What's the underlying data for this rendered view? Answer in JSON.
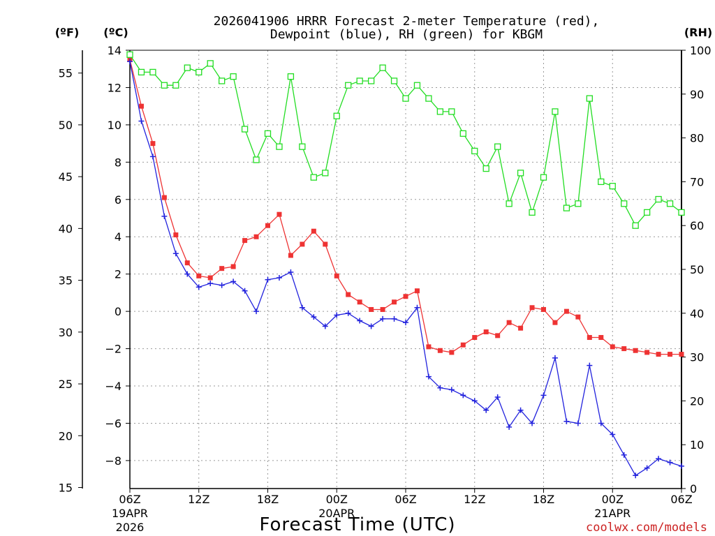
{
  "chart_data": {
    "type": "line",
    "title_line1": "2026041906 HRRR Forecast 2-meter Temperature (red),",
    "title_line2": "Dewpoint (blue), RH (green) for KBGM",
    "xlabel": "Forecast Time (UTC)",
    "unit_labels": {
      "fahrenheit": "(ºF)",
      "celsius": "(ºC)",
      "rh": "(RH)"
    },
    "watermark": "coolwx.com/models",
    "x_hours_range": [
      0,
      48
    ],
    "celsius_axis": {
      "range": [
        -9.5,
        14
      ],
      "ticks": [
        14,
        12,
        10,
        8,
        6,
        4,
        2,
        0,
        -2,
        -4,
        -6,
        -8
      ]
    },
    "fahrenheit_axis": {
      "ticks": [
        55,
        50,
        45,
        40,
        35,
        30,
        25,
        20,
        15
      ]
    },
    "rh_axis": {
      "range": [
        0,
        100
      ],
      "ticks": [
        100,
        90,
        80,
        70,
        60,
        50,
        40,
        30,
        20,
        10,
        0
      ]
    },
    "x_ticks": [
      {
        "hour": 0,
        "label": "06Z",
        "sub1": "19APR",
        "sub2": "2026"
      },
      {
        "hour": 6,
        "label": "12Z",
        "sub1": "",
        "sub2": ""
      },
      {
        "hour": 12,
        "label": "18Z",
        "sub1": "",
        "sub2": ""
      },
      {
        "hour": 18,
        "label": "00Z",
        "sub1": "20APR",
        "sub2": ""
      },
      {
        "hour": 24,
        "label": "06Z",
        "sub1": "",
        "sub2": ""
      },
      {
        "hour": 30,
        "label": "12Z",
        "sub1": "",
        "sub2": ""
      },
      {
        "hour": 36,
        "label": "18Z",
        "sub1": "",
        "sub2": ""
      },
      {
        "hour": 42,
        "label": "00Z",
        "sub1": "21APR",
        "sub2": ""
      },
      {
        "hour": 48,
        "label": "06Z",
        "sub1": "",
        "sub2": ""
      }
    ],
    "series": [
      {
        "name": "Temperature",
        "unit": "C",
        "color": "#ee3333",
        "marker": "filled-square",
        "values": [
          13.5,
          11.0,
          9.0,
          6.1,
          4.1,
          2.6,
          1.9,
          1.8,
          2.3,
          2.4,
          3.8,
          4.0,
          4.6,
          5.2,
          3.0,
          3.6,
          4.3,
          3.6,
          1.9,
          0.9,
          0.5,
          0.1,
          0.1,
          0.5,
          0.8,
          1.1,
          -1.9,
          -2.1,
          -2.2,
          -1.8,
          -1.4,
          -1.1,
          -1.3,
          -0.6,
          -0.9,
          0.2,
          0.1,
          -0.6,
          0.0,
          -0.3,
          -1.4,
          -1.4,
          -1.9,
          -2.0,
          -2.1,
          -2.2,
          -2.3,
          -2.3,
          -2.3
        ]
      },
      {
        "name": "Dewpoint",
        "unit": "C",
        "color": "#2222dd",
        "marker": "plus",
        "values": [
          13.4,
          10.2,
          8.3,
          5.1,
          3.1,
          2.0,
          1.3,
          1.5,
          1.4,
          1.6,
          1.1,
          0.0,
          1.7,
          1.8,
          2.1,
          0.2,
          -0.3,
          -0.8,
          -0.2,
          -0.1,
          -0.5,
          -0.8,
          -0.4,
          -0.4,
          -0.6,
          0.2,
          -3.5,
          -4.1,
          -4.2,
          -4.5,
          -4.8,
          -5.3,
          -4.6,
          -6.2,
          -5.3,
          -6.0,
          -4.5,
          -2.5,
          -5.9,
          -6.0,
          -2.9,
          -6.0,
          -6.6,
          -7.7,
          -8.8,
          -8.4,
          -7.9,
          -8.1,
          -8.3
        ]
      },
      {
        "name": "RH",
        "unit": "%",
        "color": "#22dd22",
        "marker": "open-square",
        "values": [
          99,
          95,
          95,
          92,
          92,
          96,
          95,
          97,
          93,
          94,
          82,
          75,
          81,
          78,
          94,
          78,
          71,
          72,
          85,
          92,
          93,
          93,
          96,
          93,
          89,
          92,
          89,
          86,
          86,
          81,
          77,
          73,
          78,
          65,
          72,
          63,
          71,
          86,
          64,
          65,
          89,
          70,
          69,
          65,
          60,
          63,
          66,
          65,
          63
        ]
      }
    ]
  }
}
